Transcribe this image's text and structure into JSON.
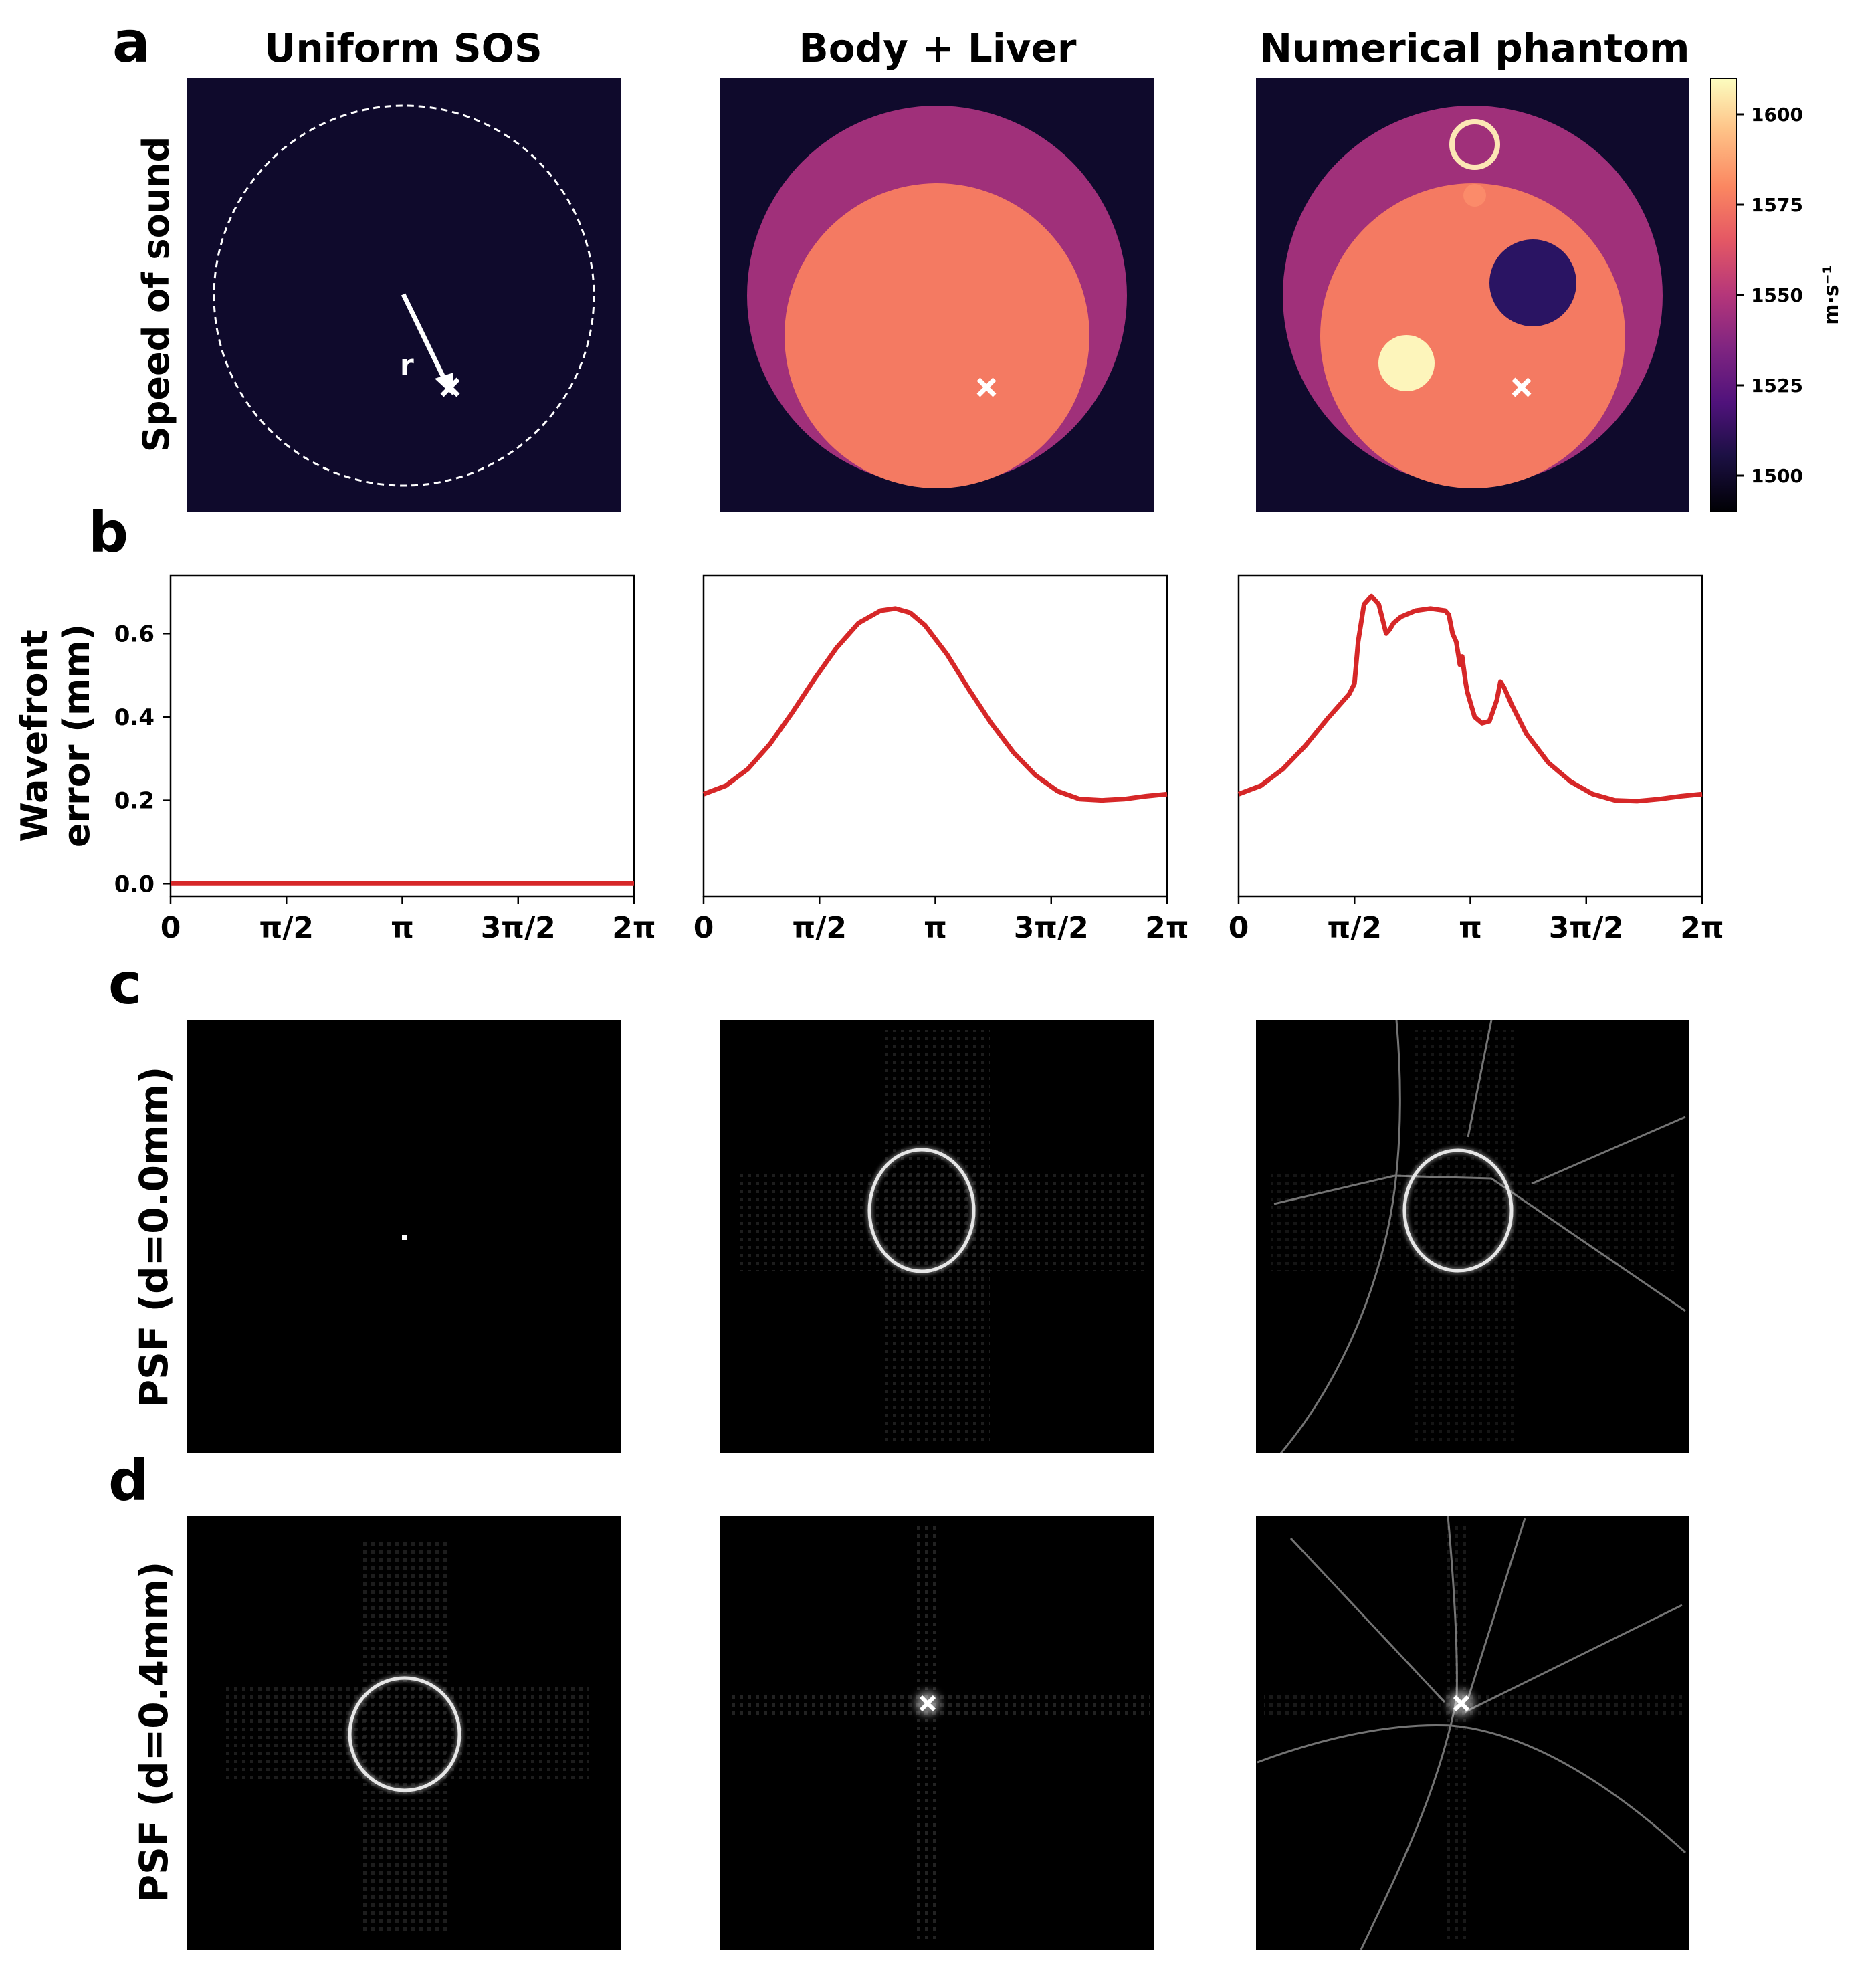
{
  "figure": {
    "panel_letters": [
      "a",
      "b",
      "c",
      "d"
    ],
    "column_titles": [
      "Uniform SOS",
      "Body + Liver",
      "Numerical phantom"
    ],
    "row_labels": {
      "a": "Speed of sound",
      "b_line1": "Wavefront",
      "b_line2": "error (mm)",
      "c": "PSF (d=0.0mm)",
      "d": "PSF (d=0.4mm)"
    }
  },
  "speed_of_sound_maps": {
    "colorbar": {
      "unit": "m·s⁻¹",
      "range": [
        1490,
        1610
      ],
      "ticks": [
        1500,
        1525,
        1550,
        1575,
        1600
      ],
      "colors": {
        "background": "#0f0a2c",
        "body": "#a0307a",
        "liver": "#f47a62",
        "lesion_low": "#2a1463",
        "lesion_high": "#fdf5bb",
        "ring": "#fce6b5",
        "marker": "#ffffff"
      }
    },
    "panels": [
      {
        "name": "Uniform SOS",
        "marker_label": "r",
        "background_sos": 1495
      },
      {
        "name": "Body + Liver",
        "background_sos": 1495,
        "body_sos": 1540,
        "liver_sos": 1570
      },
      {
        "name": "Numerical phantom",
        "background_sos": 1495,
        "body_sos": 1540,
        "liver_sos": 1570,
        "lesion_low_sos": 1505,
        "lesion_high_sos": 1605
      }
    ]
  },
  "chart_data": [
    {
      "type": "line",
      "title": "Uniform SOS",
      "xlabel": "",
      "ylabel": "Wavefront error (mm)",
      "x_ticks": [
        "0",
        "π/2",
        "π",
        "3π/2",
        "2π"
      ],
      "y_ticks": [
        "0.0",
        "0.2",
        "0.4",
        "0.6"
      ],
      "xlim": [
        0,
        6.2832
      ],
      "ylim": [
        -0.03,
        0.74
      ],
      "color": "#d62728",
      "series": [
        {
          "name": "wavefront error",
          "x": [
            0,
            6.2832
          ],
          "y": [
            0.0,
            0.0
          ]
        }
      ]
    },
    {
      "type": "line",
      "title": "Body + Liver",
      "xlabel": "",
      "ylabel": "",
      "x_ticks": [
        "0",
        "π/2",
        "π",
        "3π/2",
        "2π"
      ],
      "y_ticks": [],
      "xlim": [
        0,
        6.2832
      ],
      "ylim": [
        -0.03,
        0.74
      ],
      "color": "#d62728",
      "series": [
        {
          "name": "wavefront error",
          "x": [
            0,
            0.3,
            0.6,
            0.9,
            1.2,
            1.5,
            1.8,
            2.1,
            2.4,
            2.6,
            2.8,
            3.0,
            3.3,
            3.6,
            3.9,
            4.2,
            4.5,
            4.8,
            5.1,
            5.4,
            5.7,
            6.0,
            6.2832
          ],
          "y": [
            0.215,
            0.235,
            0.275,
            0.335,
            0.41,
            0.49,
            0.565,
            0.625,
            0.655,
            0.66,
            0.65,
            0.62,
            0.55,
            0.465,
            0.385,
            0.315,
            0.26,
            0.222,
            0.203,
            0.2,
            0.203,
            0.21,
            0.215
          ]
        }
      ]
    },
    {
      "type": "line",
      "title": "Numerical phantom",
      "xlabel": "",
      "ylabel": "",
      "x_ticks": [
        "0",
        "π/2",
        "π",
        "3π/2",
        "2π"
      ],
      "y_ticks": [],
      "xlim": [
        0,
        6.2832
      ],
      "ylim": [
        -0.03,
        0.74
      ],
      "color": "#d62728",
      "series": [
        {
          "name": "wavefront error",
          "x": [
            0,
            0.3,
            0.6,
            0.9,
            1.2,
            1.5,
            1.57,
            1.62,
            1.7,
            1.8,
            1.9,
            2.0,
            2.05,
            2.1,
            2.2,
            2.4,
            2.6,
            2.8,
            2.85,
            2.9,
            2.95,
            3.0,
            3.03,
            3.06,
            3.08,
            3.1,
            3.15,
            3.2,
            3.3,
            3.4,
            3.5,
            3.55,
            3.6,
            3.7,
            3.9,
            4.2,
            4.5,
            4.8,
            5.1,
            5.4,
            5.7,
            6.0,
            6.2832
          ],
          "y": [
            0.215,
            0.235,
            0.275,
            0.33,
            0.395,
            0.455,
            0.48,
            0.58,
            0.67,
            0.69,
            0.67,
            0.6,
            0.61,
            0.625,
            0.64,
            0.655,
            0.66,
            0.655,
            0.645,
            0.6,
            0.58,
            0.525,
            0.545,
            0.505,
            0.48,
            0.46,
            0.43,
            0.4,
            0.385,
            0.39,
            0.44,
            0.485,
            0.47,
            0.43,
            0.36,
            0.29,
            0.245,
            0.215,
            0.2,
            0.198,
            0.203,
            0.21,
            0.215
          ]
        }
      ]
    }
  ]
}
